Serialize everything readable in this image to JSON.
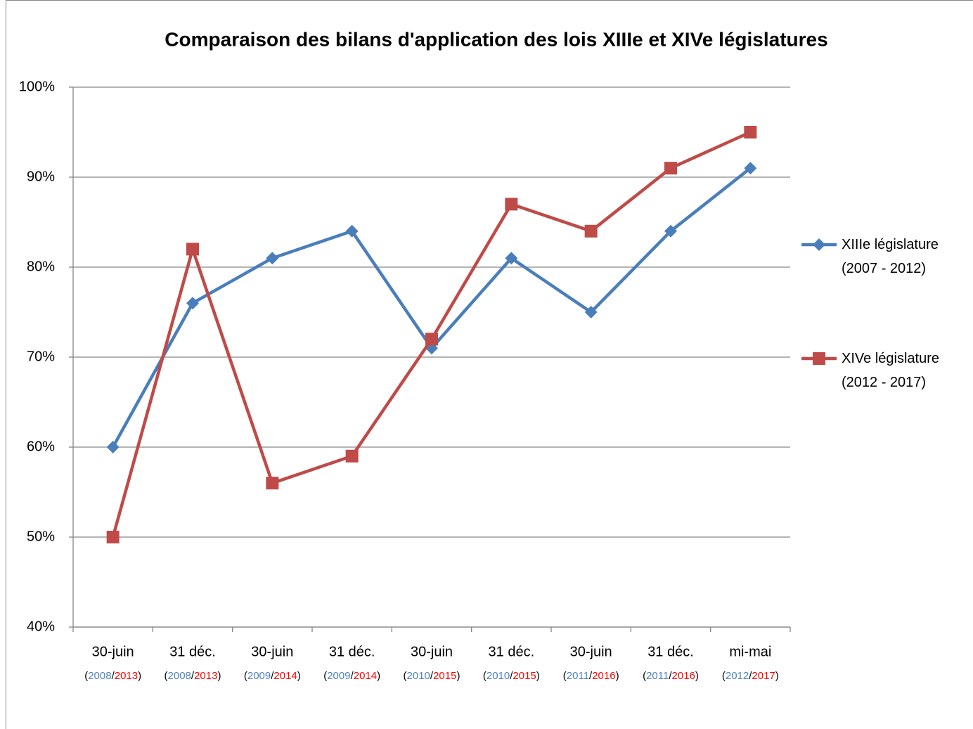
{
  "chart_data": {
    "type": "line",
    "title": "Comparaison des bilans d'application des lois XIIIe et XIVe législatures",
    "categories": [
      "30-juin",
      "31 déc.",
      "30-juin",
      "31 déc.",
      "30-juin",
      "31 déc.",
      "30-juin",
      "31 déc.",
      "mi-mai"
    ],
    "category_sublabels": [
      [
        "(",
        "2008",
        "/",
        "2013",
        ")"
      ],
      [
        "(",
        "2008",
        "/",
        "2013",
        ")"
      ],
      [
        "(",
        "2009",
        "/",
        "2014",
        ")"
      ],
      [
        "(",
        "2009",
        "/",
        "2014",
        ")"
      ],
      [
        "(",
        "2010",
        "/",
        "2015",
        ")"
      ],
      [
        "(",
        "2010",
        "/",
        "2015",
        ")"
      ],
      [
        "(",
        "2011",
        "/",
        "2016",
        ")"
      ],
      [
        "(",
        "2011",
        "/",
        "2016",
        ")"
      ],
      [
        "(",
        "2012",
        "/",
        "2017",
        ")"
      ]
    ],
    "category_sublabel_colors": [
      "#000000",
      "#4f81bd",
      "#000000",
      "#ff0000",
      "#000000"
    ],
    "series": [
      {
        "name": "XIIIe législature (2007 - 2012)",
        "color": "#4a7ebb",
        "marker": "diamond",
        "values": [
          60,
          76,
          81,
          84,
          71,
          81,
          75,
          84,
          91
        ]
      },
      {
        "name": "XIVe législature (2012 - 2017)",
        "color": "#be4b48",
        "marker": "square",
        "values": [
          50,
          82,
          56,
          59,
          72,
          87,
          84,
          91,
          95
        ]
      }
    ],
    "ylim": [
      40,
      100
    ],
    "yticks": [
      {
        "value": 40,
        "label": "40%"
      },
      {
        "value": 50,
        "label": "50%"
      },
      {
        "value": 60,
        "label": "60%"
      },
      {
        "value": 70,
        "label": "70%"
      },
      {
        "value": 80,
        "label": "80%"
      },
      {
        "value": 90,
        "label": "90%"
      },
      {
        "value": 100,
        "label": "100%"
      }
    ],
    "grid": true,
    "legend": "right"
  }
}
